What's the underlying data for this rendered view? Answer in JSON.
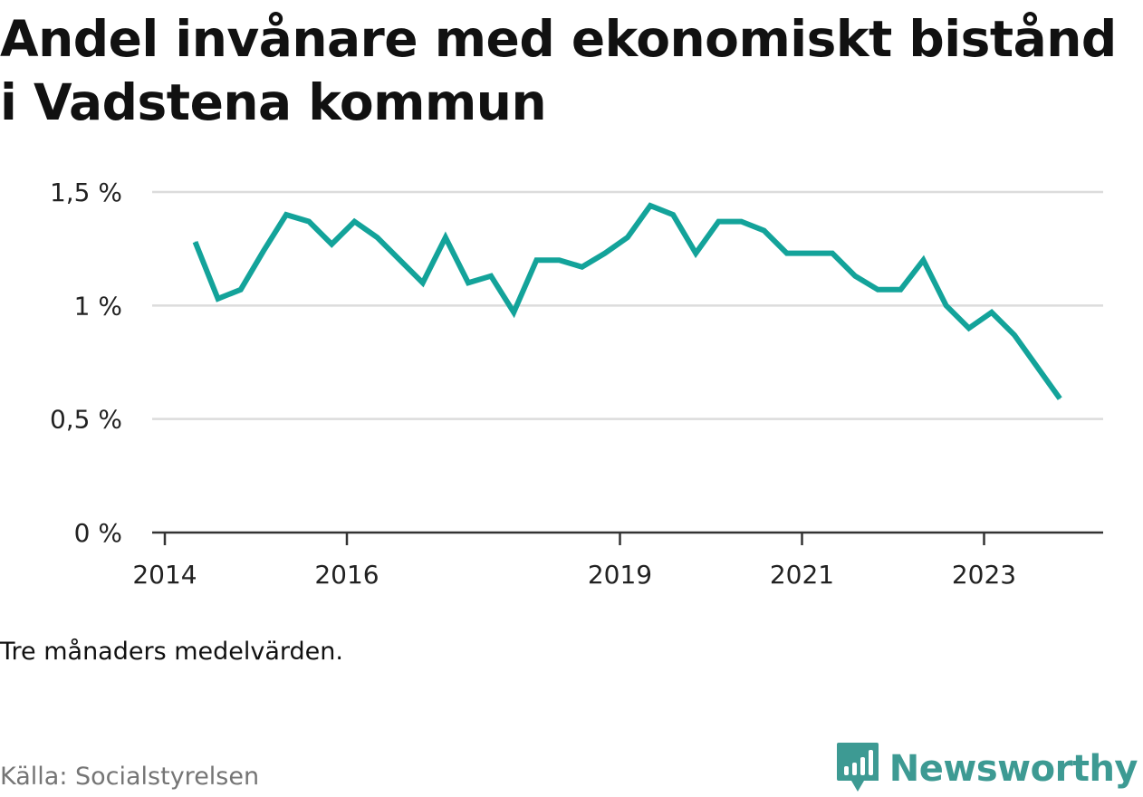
{
  "title": "Andel invånare med ekonomiskt bistånd i Vadstena kommun",
  "note": "Tre månaders medelvärden.",
  "source": "Källa: Socialstyrelsen",
  "brand": {
    "name": "Newsworthy",
    "icon": "newsworthy-logo-icon",
    "color": "#3d9a93"
  },
  "chart_data": {
    "type": "line",
    "title": "Andel invånare med ekonomiskt bistånd i Vadstena kommun",
    "xlabel": "",
    "ylabel": "",
    "x_ticks": [
      "2014",
      "2016",
      "2019",
      "2021",
      "2023"
    ],
    "y_ticks": [
      "0 %",
      "0,5 %",
      "1 %",
      "1,5 %"
    ],
    "ylim": [
      0,
      1.5
    ],
    "grid": true,
    "line_color": "#13a39a",
    "series": [
      {
        "x": [
          "2014-05",
          "2014-08",
          "2014-11",
          "2015-02",
          "2015-05",
          "2015-08",
          "2015-11",
          "2016-02",
          "2016-05",
          "2016-08",
          "2016-11",
          "2017-02",
          "2017-05",
          "2017-08",
          "2017-11",
          "2018-02",
          "2018-05",
          "2018-08",
          "2018-11",
          "2019-02",
          "2019-05",
          "2019-08",
          "2019-11",
          "2020-02",
          "2020-05",
          "2020-08",
          "2020-11",
          "2021-02",
          "2021-05",
          "2021-08",
          "2021-11",
          "2022-02",
          "2022-05",
          "2022-08",
          "2022-11",
          "2023-02",
          "2023-05",
          "2023-08",
          "2023-11"
        ],
        "values": [
          1.28,
          1.03,
          1.07,
          1.24,
          1.4,
          1.37,
          1.27,
          1.37,
          1.3,
          1.2,
          1.1,
          1.3,
          1.1,
          1.13,
          0.97,
          1.2,
          1.2,
          1.17,
          1.23,
          1.3,
          1.44,
          1.4,
          1.23,
          1.37,
          1.37,
          1.33,
          1.23,
          1.23,
          1.23,
          1.13,
          1.07,
          1.07,
          1.2,
          1.0,
          0.9,
          0.97,
          0.87,
          0.73,
          0.59
        ]
      }
    ]
  }
}
